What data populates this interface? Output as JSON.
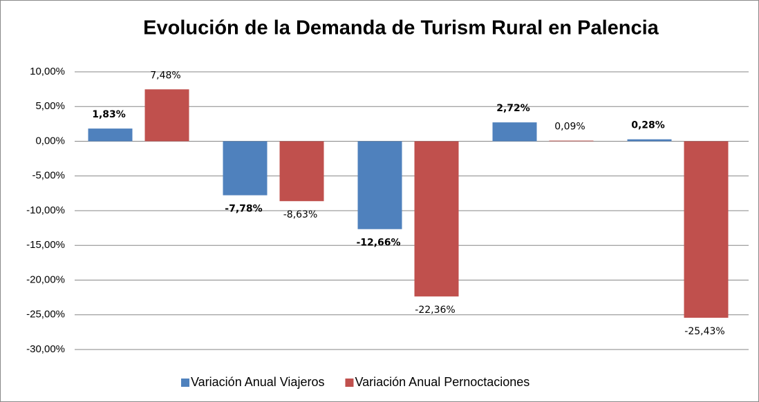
{
  "chart_data": {
    "type": "bar",
    "title": "Evolución de la Demanda de Turism Rural en Palencia",
    "categories": [
      null,
      null,
      null,
      null,
      null
    ],
    "series": [
      {
        "name": "Variación Anual Viajeros",
        "color": "#4f81bd",
        "values": [
          1.83,
          -7.78,
          -12.66,
          2.72,
          0.28
        ],
        "value_labels": [
          "1,83%",
          "-7,78%",
          "-12,66%",
          "2,72%",
          "0,28%"
        ]
      },
      {
        "name": "Variación Anual Pernoctaciones",
        "color": "#c0504d",
        "values": [
          7.48,
          -8.63,
          -22.36,
          0.09,
          -25.43
        ],
        "value_labels": [
          "7,48%",
          "-8,63%",
          "-22,36%",
          "0,09%",
          "-25,43%"
        ]
      }
    ],
    "ylim": [
      -30,
      10
    ],
    "yticks": [
      {
        "value": -30,
        "label": "-30,00%"
      },
      {
        "value": -25,
        "label": "-25,00%"
      },
      {
        "value": -20,
        "label": "-20,00%"
      },
      {
        "value": -15,
        "label": "-15,00%"
      },
      {
        "value": -10,
        "label": "-10,00%"
      },
      {
        "value": -5,
        "label": "-5,00%"
      },
      {
        "value": 0,
        "label": "0,00%"
      },
      {
        "value": 5,
        "label": "5,00%"
      },
      {
        "value": 10,
        "label": "10,00%"
      }
    ],
    "grid": true,
    "legend": "bottom"
  }
}
